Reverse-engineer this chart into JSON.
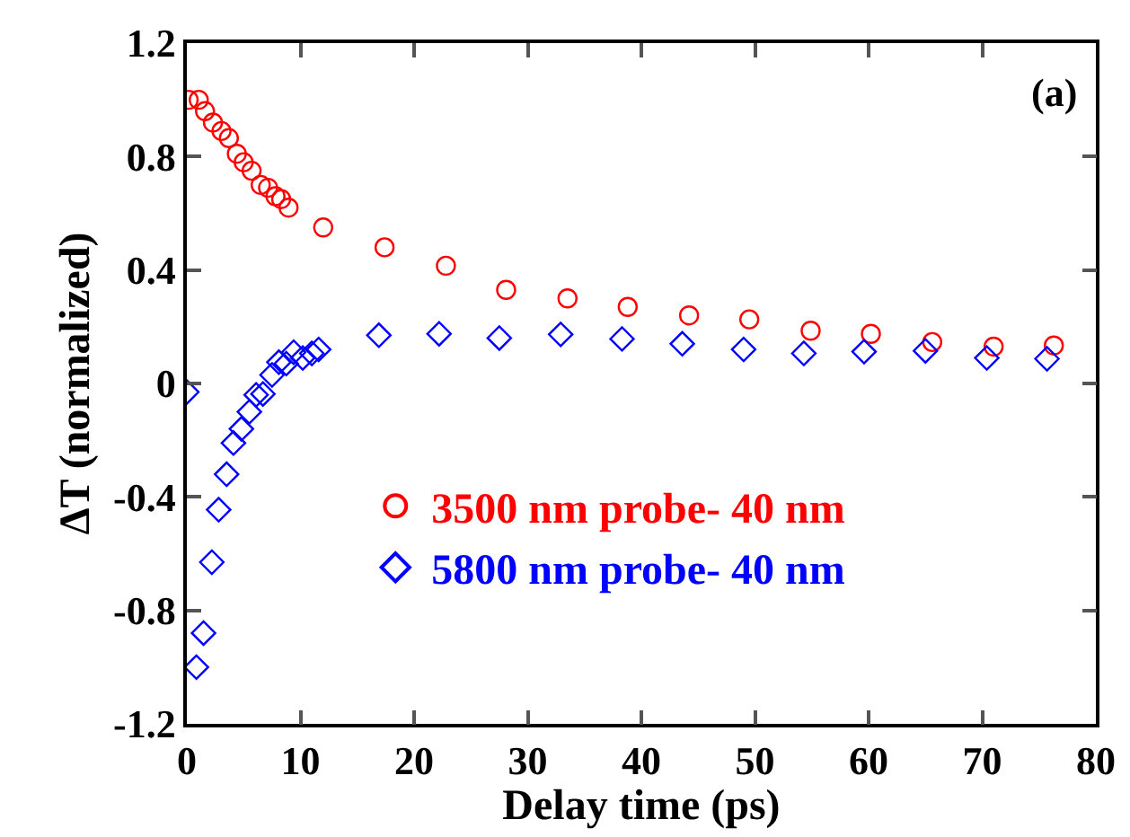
{
  "chart_data": {
    "type": "scatter",
    "xlabel": "Delay time (ps)",
    "ylabel": "ΔT (normalized)",
    "annotations": [
      "(a)"
    ],
    "xlim": [
      0,
      80
    ],
    "xticks": [
      0,
      10,
      20,
      30,
      40,
      50,
      60,
      70,
      80
    ],
    "ylim": [
      -1.2,
      1.2
    ],
    "yticks": [
      -1.2,
      -0.8,
      -0.4,
      0,
      0.4,
      0.8,
      1.2
    ],
    "grid": false,
    "legend": "bottom right",
    "series": [
      {
        "name": "3500 nm probe- 40 nm",
        "color": "#ff0000",
        "marker": "circle",
        "x": [
          0.16,
          1.05,
          1.6,
          2.3,
          3.05,
          3.7,
          4.4,
          5.0,
          5.7,
          6.5,
          7.15,
          7.8,
          8.3,
          8.95,
          12,
          17.4,
          22.8,
          28.1,
          33.5,
          38.8,
          44.2,
          49.5,
          54.9,
          60.2,
          65.6,
          71,
          76.3
        ],
        "values": [
          1.0,
          1.0,
          0.96,
          0.92,
          0.89,
          0.865,
          0.81,
          0.78,
          0.75,
          0.7,
          0.69,
          0.66,
          0.65,
          0.62,
          0.55,
          0.48,
          0.415,
          0.33,
          0.3,
          0.27,
          0.24,
          0.226,
          0.186,
          0.175,
          0.146,
          0.13,
          0.134
        ]
      },
      {
        "name": "5800 nm probe- 40 nm",
        "color": "#0000ff",
        "marker": "diamond",
        "x": [
          0,
          0.84,
          1.47,
          2.2,
          2.8,
          3.5,
          4.1,
          4.8,
          5.5,
          6.1,
          6.7,
          7.5,
          8.1,
          8.75,
          9.4,
          10.2,
          11,
          11.6,
          16.9,
          22.2,
          27.5,
          32.9,
          38.3,
          43.6,
          49,
          54.3,
          59.6,
          65,
          70.4,
          75.7
        ],
        "values": [
          -0.03,
          -1.0,
          -0.88,
          -0.63,
          -0.445,
          -0.32,
          -0.21,
          -0.16,
          -0.1,
          -0.04,
          -0.037,
          0.03,
          0.075,
          0.07,
          0.11,
          0.09,
          0.106,
          0.12,
          0.17,
          0.175,
          0.16,
          0.173,
          0.157,
          0.14,
          0.12,
          0.106,
          0.112,
          0.115,
          0.09,
          0.087
        ]
      }
    ]
  }
}
